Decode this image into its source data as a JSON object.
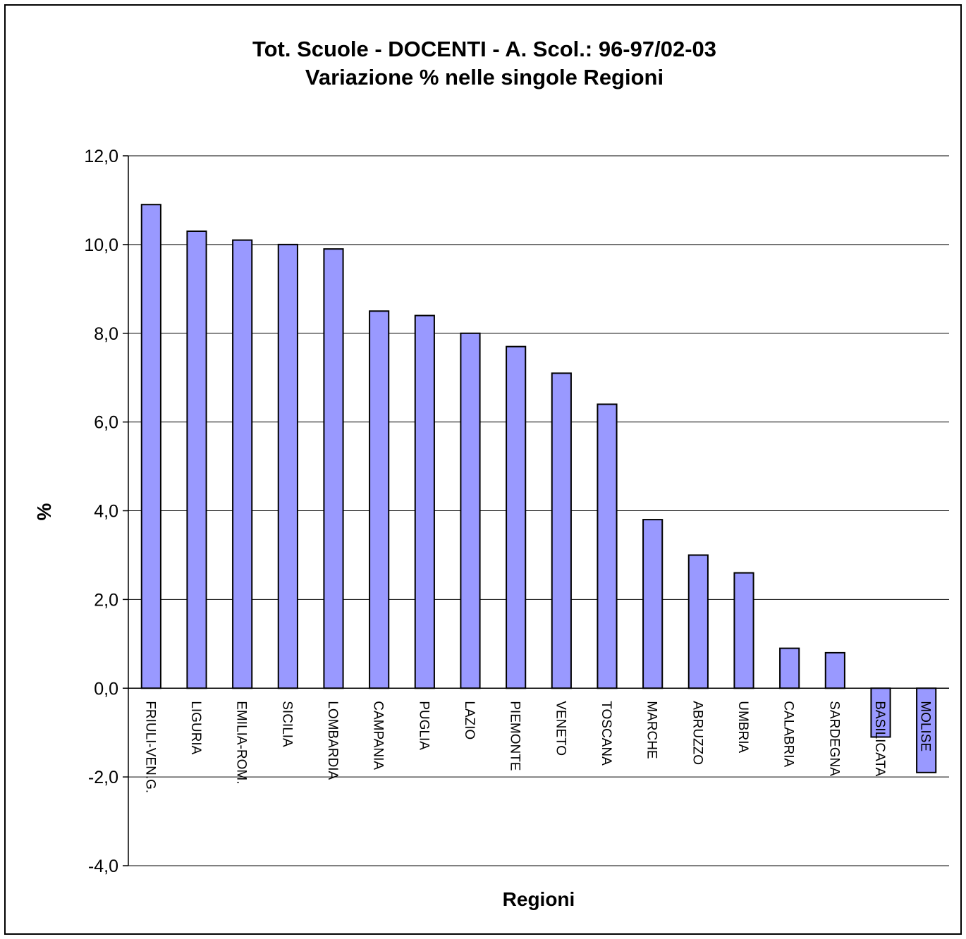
{
  "chart_data": {
    "type": "bar",
    "title": "Tot. Scuole - DOCENTI - A. Scol.: 96-97/02-03",
    "subtitle": "Variazione % nelle singole Regioni",
    "xlabel": "Regioni",
    "ylabel": "%",
    "ylim": [
      -4,
      12
    ],
    "ytick_step": 2,
    "ytick_labels": [
      "-4,0",
      "-2,0",
      "0,0",
      "2,0",
      "4,0",
      "6,0",
      "8,0",
      "10,0",
      "12,0"
    ],
    "grid": true,
    "legend": "none",
    "bar_color": "#9999ff",
    "categories": [
      "FRIULI-VEN.G.",
      "LIGURIA",
      "EMILIA-ROM.",
      "SICILIA",
      "LOMBARDIA",
      "CAMPANIA",
      "PUGLIA",
      "LAZIO",
      "PIEMONTE",
      "VENETO",
      "TOSCANA",
      "MARCHE",
      "ABRUZZO",
      "UMBRIA",
      "CALABRIA",
      "SARDEGNA",
      "BASILICATA",
      "MOLISE"
    ],
    "values": [
      10.9,
      10.3,
      10.1,
      10.0,
      9.9,
      8.5,
      8.4,
      8.0,
      7.7,
      7.1,
      6.4,
      3.8,
      3.0,
      2.6,
      0.9,
      0.8,
      -1.1,
      -1.9
    ]
  }
}
